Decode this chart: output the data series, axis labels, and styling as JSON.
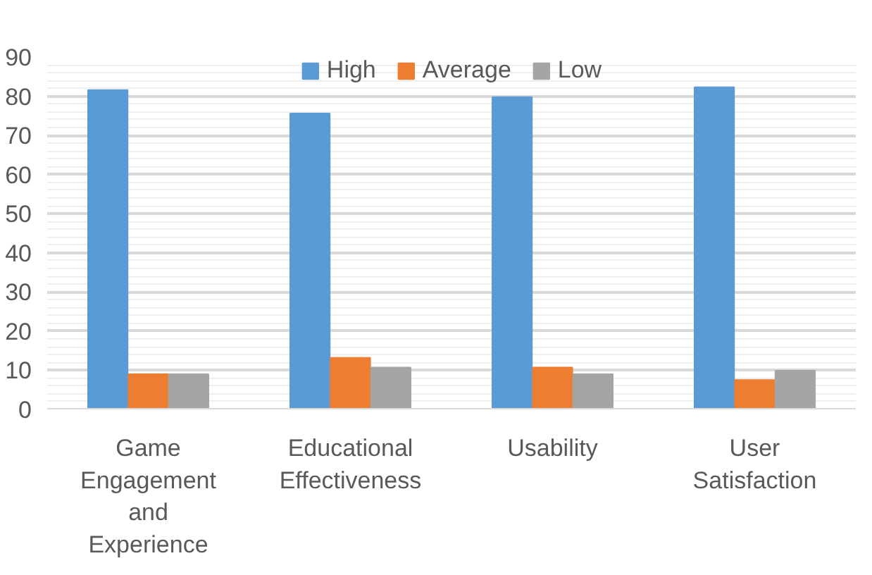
{
  "chart_data": {
    "type": "bar",
    "categories": [
      "Game Engagement and Experience",
      "Educational Effectiveness",
      "Usability",
      "User Satisfaction"
    ],
    "series": [
      {
        "name": "High",
        "color": "#5b9bd5",
        "values": [
          81.6,
          75.6,
          79.8,
          82.3
        ]
      },
      {
        "name": "Average",
        "color": "#ed7d31",
        "values": [
          9.0,
          13.2,
          10.7,
          7.5
        ]
      },
      {
        "name": "Low",
        "color": "#a5a5a5",
        "values": [
          9.0,
          10.7,
          9.0,
          9.9
        ]
      }
    ],
    "ylim": [
      0,
      90
    ],
    "yticks": [
      0,
      10,
      20,
      30,
      40,
      50,
      60,
      70,
      80,
      90
    ],
    "grid": "y",
    "legend": "top"
  }
}
